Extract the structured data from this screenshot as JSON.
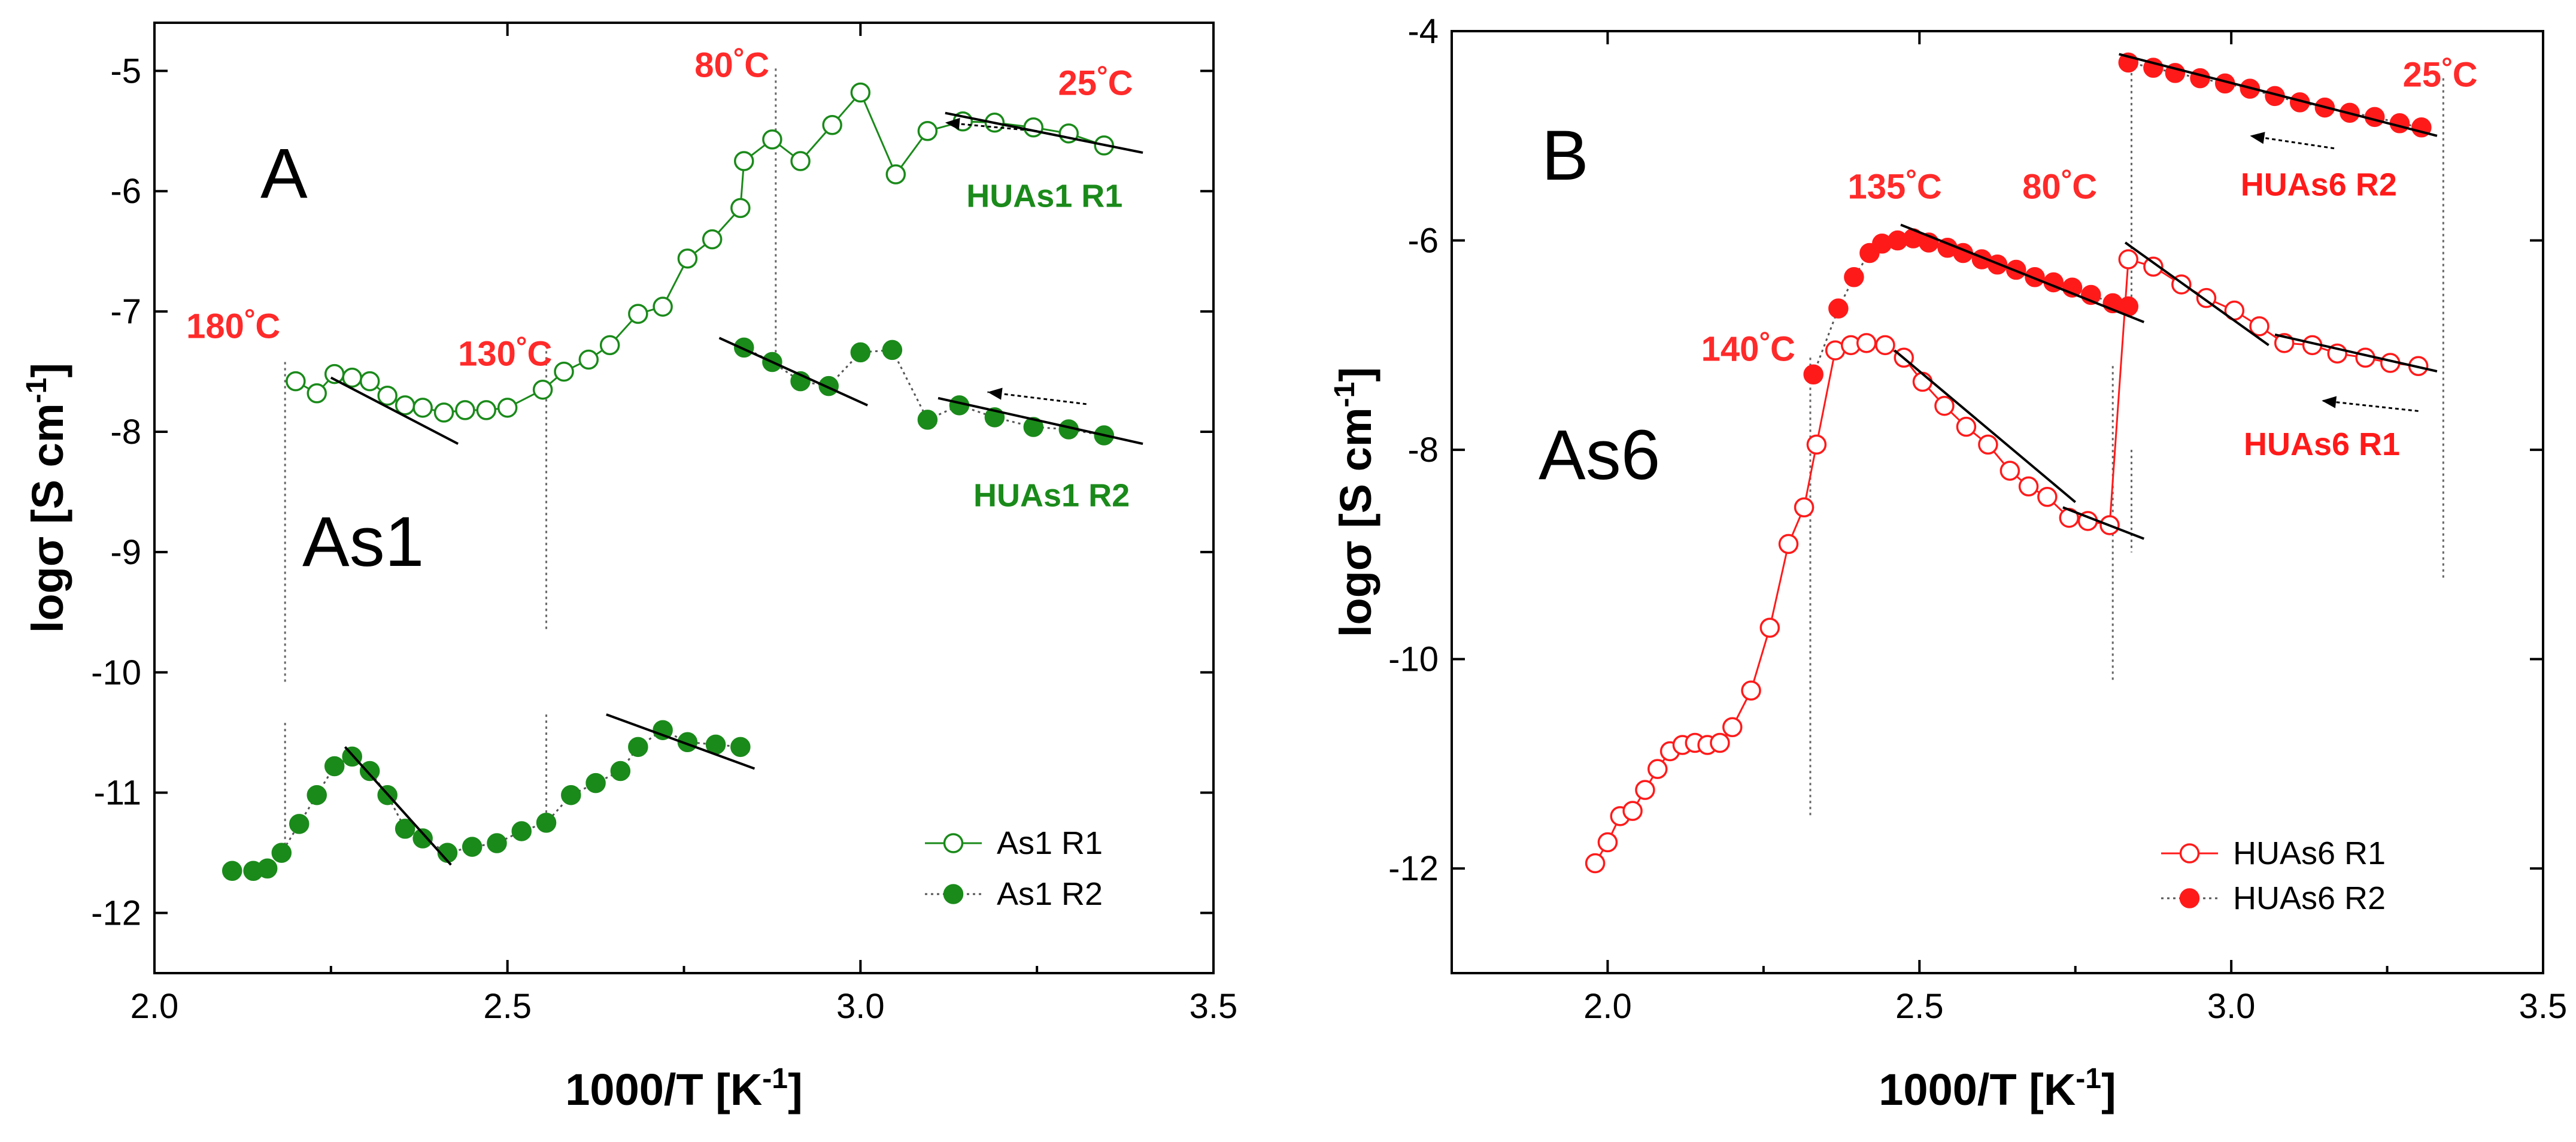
{
  "chart_data": [
    {
      "type": "scatter",
      "panel_letter": "A",
      "sample_label": "As1",
      "xlabel": "1000/T [K",
      "xlabel_sup": "-1",
      "xlabel_suffix": "]",
      "ylabel": "logσ [S cm",
      "ylabel_sup": "-1",
      "ylabel_suffix": "]",
      "xlim": [
        2.0,
        3.5
      ],
      "ylim": [
        -12.5,
        -4.6
      ],
      "x_ticks": [
        2.0,
        2.5,
        3.0,
        3.5
      ],
      "x_tick_labels": [
        "2.0",
        "2.5",
        "3.0",
        "3.5"
      ],
      "y_ticks": [
        -12,
        -11,
        -10,
        -9,
        -8,
        -7,
        -6,
        -5
      ],
      "y_tick_labels": [
        "-12",
        "-11",
        "-10",
        "-9",
        "-8",
        "-7",
        "-6",
        "-5"
      ],
      "legend_position": "bottom-right",
      "series": [
        {
          "name": "As1 R1",
          "color": "#1a8a1a",
          "marker": "open-circle",
          "line": "solid",
          "points": [
            [
              2.2,
              -7.58
            ],
            [
              2.23,
              -7.68
            ],
            [
              2.255,
              -7.52
            ],
            [
              2.28,
              -7.55
            ],
            [
              2.305,
              -7.58
            ],
            [
              2.33,
              -7.7
            ],
            [
              2.355,
              -7.78
            ],
            [
              2.38,
              -7.8
            ],
            [
              2.41,
              -7.84
            ],
            [
              2.44,
              -7.82
            ],
            [
              2.47,
              -7.82
            ],
            [
              2.5,
              -7.8
            ],
            [
              2.55,
              -7.65
            ],
            [
              2.58,
              -7.5
            ],
            [
              2.615,
              -7.4
            ],
            [
              2.645,
              -7.28
            ],
            [
              2.685,
              -7.02
            ],
            [
              2.72,
              -6.96
            ],
            [
              2.755,
              -6.56
            ],
            [
              2.79,
              -6.4
            ],
            [
              2.83,
              -6.14
            ],
            [
              2.835,
              -5.75
            ],
            [
              2.875,
              -5.57
            ],
            [
              2.915,
              -5.75
            ],
            [
              2.96,
              -5.45
            ],
            [
              3.0,
              -5.18
            ],
            [
              3.05,
              -5.86
            ],
            [
              3.095,
              -5.5
            ],
            [
              3.145,
              -5.42
            ],
            [
              3.19,
              -5.43
            ],
            [
              3.245,
              -5.47
            ],
            [
              3.295,
              -5.52
            ],
            [
              3.345,
              -5.62
            ]
          ]
        },
        {
          "name": "As1 R2",
          "color": "#1a8a1a",
          "marker": "filled-circle",
          "line": "dotted",
          "segments": [
            [
              [
                2.11,
                -11.65
              ],
              [
                2.14,
                -11.65
              ],
              [
                2.16,
                -11.63
              ],
              [
                2.18,
                -11.5
              ],
              [
                2.205,
                -11.26
              ],
              [
                2.23,
                -11.02
              ],
              [
                2.255,
                -10.78
              ],
              [
                2.28,
                -10.7
              ],
              [
                2.305,
                -10.82
              ],
              [
                2.33,
                -11.02
              ],
              [
                2.355,
                -11.3
              ],
              [
                2.38,
                -11.38
              ],
              [
                2.415,
                -11.5
              ],
              [
                2.45,
                -11.45
              ],
              [
                2.485,
                -11.42
              ],
              [
                2.52,
                -11.32
              ],
              [
                2.555,
                -11.25
              ],
              [
                2.59,
                -11.02
              ],
              [
                2.625,
                -10.92
              ],
              [
                2.66,
                -10.82
              ],
              [
                2.685,
                -10.62
              ],
              [
                2.72,
                -10.48
              ],
              [
                2.755,
                -10.58
              ],
              [
                2.795,
                -10.6
              ],
              [
                2.83,
                -10.62
              ]
            ],
            [
              [
                2.835,
                -7.3
              ],
              [
                2.875,
                -7.42
              ],
              [
                2.915,
                -7.58
              ],
              [
                2.955,
                -7.62
              ],
              [
                3.0,
                -7.34
              ],
              [
                3.045,
                -7.32
              ],
              [
                3.095,
                -7.9
              ],
              [
                3.14,
                -7.78
              ],
              [
                3.19,
                -7.88
              ],
              [
                3.245,
                -7.96
              ],
              [
                3.295,
                -7.98
              ],
              [
                3.345,
                -8.03
              ]
            ]
          ]
        }
      ],
      "fit_lines": [
        [
          [
            3.12,
            -5.35
          ],
          [
            3.4,
            -5.68
          ]
        ],
        [
          [
            2.25,
            -7.55
          ],
          [
            2.43,
            -8.1
          ]
        ],
        [
          [
            2.8,
            -7.22
          ],
          [
            3.01,
            -7.78
          ]
        ],
        [
          [
            3.11,
            -7.72
          ],
          [
            3.4,
            -8.1
          ]
        ],
        [
          [
            2.27,
            -10.62
          ],
          [
            2.42,
            -11.6
          ]
        ],
        [
          [
            2.64,
            -10.35
          ],
          [
            2.85,
            -10.8
          ]
        ]
      ],
      "arrows": [
        [
          [
            3.25,
            -5.5
          ],
          [
            3.12,
            -5.43
          ]
        ],
        [
          [
            3.32,
            -7.77
          ],
          [
            3.18,
            -7.67
          ]
        ]
      ],
      "vlines": [
        [
          2.185,
          -7.42,
          -10.1
        ],
        [
          2.185,
          -10.42,
          -11.48
        ],
        [
          2.555,
          -7.28,
          -9.65
        ],
        [
          2.555,
          -10.35,
          -11.25
        ],
        [
          2.88,
          -4.98,
          -7.48
        ]
      ],
      "annotations": [
        {
          "text": "180°C",
          "x": 2.045,
          "y": -7.22,
          "kind": "temp"
        },
        {
          "text": "130°C",
          "x": 2.43,
          "y": -7.45,
          "kind": "temp"
        },
        {
          "text": "80°C",
          "x": 2.765,
          "y": -5.05,
          "kind": "temp"
        },
        {
          "text": "25°C",
          "x": 3.28,
          "y": -5.2,
          "kind": "temp"
        },
        {
          "text": "HUAs1 R1",
          "x": 3.15,
          "y": -6.13,
          "kind": "run"
        },
        {
          "text": "HUAs1 R2",
          "x": 3.16,
          "y": -8.62,
          "kind": "run"
        }
      ]
    },
    {
      "type": "scatter",
      "panel_letter": "B",
      "sample_label": "As6",
      "xlabel": "1000/T [K",
      "xlabel_sup": "-1",
      "xlabel_suffix": "]",
      "ylabel": "logσ [S cm",
      "ylabel_sup": "-1",
      "ylabel_suffix": "]",
      "xlim": [
        1.75,
        3.5
      ],
      "ylim": [
        -13.0,
        -4.0
      ],
      "x_ticks": [
        2.0,
        2.5,
        3.0,
        3.5
      ],
      "x_tick_labels": [
        "2.0",
        "2.5",
        "3.0",
        "3.5"
      ],
      "y_ticks": [
        -12,
        -10,
        -8,
        -6,
        -4
      ],
      "y_tick_labels": [
        "-12",
        "-10",
        "-8",
        "-6",
        "-4"
      ],
      "legend_position": "bottom-right",
      "series": [
        {
          "name": "HUAs6 R1",
          "color": "#ff1a1a",
          "marker": "open-circle",
          "line": "solid",
          "points": [
            [
              1.98,
              -11.95
            ],
            [
              2.0,
              -11.75
            ],
            [
              2.02,
              -11.5
            ],
            [
              2.04,
              -11.45
            ],
            [
              2.06,
              -11.25
            ],
            [
              2.08,
              -11.05
            ],
            [
              2.1,
              -10.88
            ],
            [
              2.12,
              -10.82
            ],
            [
              2.14,
              -10.8
            ],
            [
              2.16,
              -10.82
            ],
            [
              2.18,
              -10.8
            ],
            [
              2.2,
              -10.65
            ],
            [
              2.23,
              -10.3
            ],
            [
              2.26,
              -9.7
            ],
            [
              2.29,
              -8.9
            ],
            [
              2.315,
              -8.55
            ],
            [
              2.335,
              -7.95
            ],
            [
              2.365,
              -7.05
            ],
            [
              2.39,
              -7.0
            ],
            [
              2.415,
              -6.98
            ],
            [
              2.445,
              -7.0
            ],
            [
              2.475,
              -7.12
            ],
            [
              2.505,
              -7.35
            ],
            [
              2.54,
              -7.58
            ],
            [
              2.575,
              -7.78
            ],
            [
              2.61,
              -7.95
            ],
            [
              2.645,
              -8.2
            ],
            [
              2.675,
              -8.35
            ],
            [
              2.705,
              -8.45
            ],
            [
              2.74,
              -8.65
            ],
            [
              2.77,
              -8.68
            ],
            [
              2.805,
              -8.72
            ],
            [
              2.835,
              -6.18
            ],
            [
              2.875,
              -6.25
            ],
            [
              2.92,
              -6.42
            ],
            [
              2.96,
              -6.55
            ],
            [
              3.005,
              -6.67
            ],
            [
              3.045,
              -6.82
            ],
            [
              3.085,
              -6.98
            ],
            [
              3.13,
              -7.0
            ],
            [
              3.17,
              -7.08
            ],
            [
              3.215,
              -7.12
            ],
            [
              3.255,
              -7.17
            ],
            [
              3.3,
              -7.2
            ]
          ]
        },
        {
          "name": "HUAs6 R2",
          "color": "#ff1a1a",
          "marker": "filled-circle",
          "line": "dotted",
          "segments": [
            [
              [
                2.33,
                -7.28
              ],
              [
                2.37,
                -6.65
              ],
              [
                2.395,
                -6.35
              ],
              [
                2.42,
                -6.12
              ],
              [
                2.44,
                -6.03
              ],
              [
                2.465,
                -6.0
              ],
              [
                2.49,
                -5.98
              ],
              [
                2.515,
                -6.02
              ],
              [
                2.545,
                -6.07
              ],
              [
                2.57,
                -6.12
              ],
              [
                2.6,
                -6.18
              ],
              [
                2.625,
                -6.23
              ],
              [
                2.655,
                -6.28
              ],
              [
                2.685,
                -6.35
              ],
              [
                2.715,
                -6.4
              ],
              [
                2.745,
                -6.45
              ],
              [
                2.775,
                -6.52
              ],
              [
                2.81,
                -6.6
              ],
              [
                2.835,
                -6.63
              ]
            ],
            [
              [
                2.835,
                -4.3
              ],
              [
                2.875,
                -4.35
              ],
              [
                2.91,
                -4.4
              ],
              [
                2.95,
                -4.45
              ],
              [
                2.99,
                -4.5
              ],
              [
                3.03,
                -4.55
              ],
              [
                3.07,
                -4.62
              ],
              [
                3.11,
                -4.68
              ],
              [
                3.15,
                -4.73
              ],
              [
                3.19,
                -4.78
              ],
              [
                3.23,
                -4.82
              ],
              [
                3.27,
                -4.88
              ],
              [
                3.305,
                -4.92
              ]
            ]
          ]
        }
      ],
      "fit_lines": [
        [
          [
            2.82,
            -4.22
          ],
          [
            3.33,
            -5.0
          ]
        ],
        [
          [
            2.47,
            -5.85
          ],
          [
            2.86,
            -6.78
          ]
        ],
        [
          [
            2.46,
            -7.05
          ],
          [
            2.75,
            -8.5
          ]
        ],
        [
          [
            2.73,
            -8.55
          ],
          [
            2.86,
            -8.85
          ]
        ],
        [
          [
            2.83,
            -6.02
          ],
          [
            3.06,
            -7.0
          ]
        ],
        [
          [
            3.07,
            -6.9
          ],
          [
            3.33,
            -7.25
          ]
        ]
      ],
      "arrows": [
        [
          [
            3.165,
            -5.12
          ],
          [
            3.03,
            -5.0
          ]
        ],
        [
          [
            3.3,
            -7.63
          ],
          [
            3.145,
            -7.53
          ]
        ]
      ],
      "vlines": [
        [
          2.325,
          -7.12,
          -11.5
        ],
        [
          2.81,
          -7.2,
          -10.2
        ],
        [
          2.84,
          -4.4,
          -6.62
        ],
        [
          2.84,
          -8.0,
          -8.98
        ],
        [
          3.34,
          -4.45,
          -9.25
        ]
      ],
      "annotations": [
        {
          "text": "135°C",
          "x": 2.385,
          "y": -5.6,
          "kind": "temp"
        },
        {
          "text": "80°C",
          "x": 2.665,
          "y": -5.6,
          "kind": "temp"
        },
        {
          "text": "25°C",
          "x": 3.275,
          "y": -4.53,
          "kind": "temp"
        },
        {
          "text": "140°C",
          "x": 2.15,
          "y": -7.15,
          "kind": "temp"
        },
        {
          "text": "HUAs6 R2",
          "x": 3.015,
          "y": -5.57,
          "kind": "run"
        },
        {
          "text": "HUAs6 R1",
          "x": 3.02,
          "y": -8.05,
          "kind": "run"
        }
      ]
    }
  ]
}
